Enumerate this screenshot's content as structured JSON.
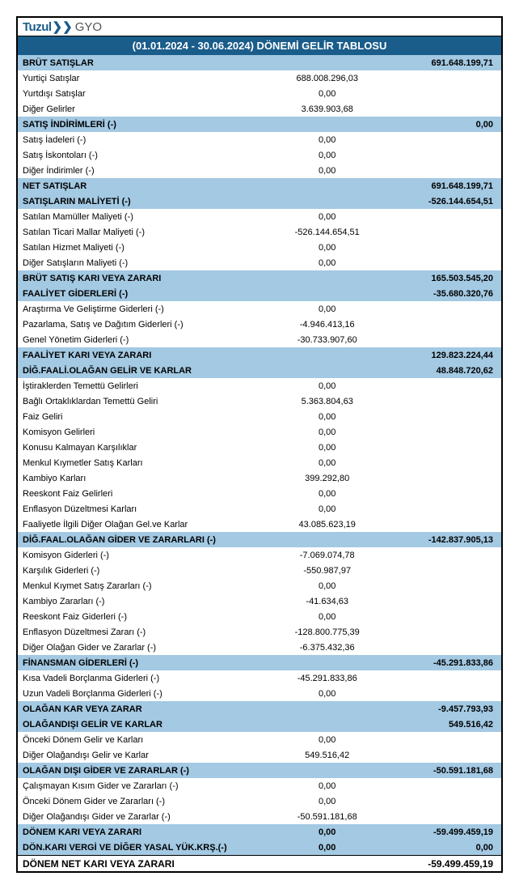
{
  "logo": {
    "brand": "Tuzul",
    "suffix": "GYO"
  },
  "title": "(01.01.2024 - 30.06.2024)   DÖNEMİ  GELİR TABLOSU",
  "rows": [
    {
      "label": "BRÜT SATIŞLAR",
      "mid": "",
      "right": "691.648.199,71",
      "cls": "header-row"
    },
    {
      "label": "Yurtiçi Satışlar",
      "mid": "688.008.296,03",
      "right": ""
    },
    {
      "label": "Yurtdışı Satışlar",
      "mid": "0,00",
      "right": ""
    },
    {
      "label": "Diğer Gelirler",
      "mid": "3.639.903,68",
      "right": ""
    },
    {
      "label": "SATIŞ İNDİRİMLERİ (-)",
      "mid": "",
      "right": "0,00",
      "cls": "header-row"
    },
    {
      "label": "Satış İadeleri (-)",
      "mid": "0,00",
      "right": ""
    },
    {
      "label": "Satış İskontoları (-)",
      "mid": "0,00",
      "right": ""
    },
    {
      "label": "Diğer İndirimler (-)",
      "mid": "0,00",
      "right": ""
    },
    {
      "label": "NET SATIŞLAR",
      "mid": "",
      "right": "691.648.199,71",
      "cls": "header-row"
    },
    {
      "label": "SATIŞLARIN MALİYETİ (-)",
      "mid": "",
      "right": "-526.144.654,51",
      "cls": "header-row"
    },
    {
      "label": "Satılan Mamüller Maliyeti (-)",
      "mid": "0,00",
      "right": ""
    },
    {
      "label": "Satılan Ticari Mallar Maliyeti (-)",
      "mid": "-526.144.654,51",
      "right": ""
    },
    {
      "label": "Satılan Hizmet Maliyeti (-)",
      "mid": "0,00",
      "right": ""
    },
    {
      "label": "Diğer Satışların Maliyeti (-)",
      "mid": "0,00",
      "right": ""
    },
    {
      "label": "BRÜT SATIŞ KARI VEYA ZARARI",
      "mid": "",
      "right": "165.503.545,20",
      "cls": "header-row"
    },
    {
      "label": "FAALİYET GİDERLERİ (-)",
      "mid": "",
      "right": "-35.680.320,76",
      "cls": "header-row"
    },
    {
      "label": "Araştırma Ve Geliştirme Giderleri (-)",
      "mid": "0,00",
      "right": ""
    },
    {
      "label": "Pazarlama, Satış ve Dağıtım Giderleri (-)",
      "mid": "-4.946.413,16",
      "right": ""
    },
    {
      "label": "Genel Yönetim Giderleri (-)",
      "mid": "-30.733.907,60",
      "right": ""
    },
    {
      "label": "FAALİYET KARI VEYA ZARARI",
      "mid": "",
      "right": "129.823.224,44",
      "cls": "header-row"
    },
    {
      "label": "DİĞ.FAALİ.OLAĞAN GELİR VE KARLAR",
      "mid": "",
      "right": "48.848.720,62",
      "cls": "header-row"
    },
    {
      "label": "İştiraklerden Temettü Gelirleri",
      "mid": "0,00",
      "right": ""
    },
    {
      "label": "Bağlı Ortaklıklardan Temettü Geliri",
      "mid": "5.363.804,63",
      "right": ""
    },
    {
      "label": "Faiz Geliri",
      "mid": "0,00",
      "right": ""
    },
    {
      "label": "Komisyon Gelirleri",
      "mid": "0,00",
      "right": ""
    },
    {
      "label": "Konusu Kalmayan Karşılıklar",
      "mid": "0,00",
      "right": ""
    },
    {
      "label": "Menkul Kıymetler Satış Karları",
      "mid": "0,00",
      "right": ""
    },
    {
      "label": "Kambiyo Karları",
      "mid": "399.292,80",
      "right": ""
    },
    {
      "label": "Reeskont Faiz Gelirleri",
      "mid": "0,00",
      "right": ""
    },
    {
      "label": "Enflasyon Düzeltmesi Karları",
      "mid": "0,00",
      "right": ""
    },
    {
      "label": "Faaliyetle İlgili Diğer Olağan Gel.ve Karlar",
      "mid": "43.085.623,19",
      "right": ""
    },
    {
      "label": "DİĞ.FAAL.OLAĞAN GİDER VE ZARARLARI (-)",
      "mid": "",
      "right": "-142.837.905,13",
      "cls": "header-row"
    },
    {
      "label": "Komisyon Giderleri (-)",
      "mid": "-7.069.074,78",
      "right": ""
    },
    {
      "label": "Karşılık Giderleri (-)",
      "mid": "-550.987,97",
      "right": ""
    },
    {
      "label": "Menkul Kıymet Satış Zararları (-)",
      "mid": "0,00",
      "right": ""
    },
    {
      "label": "Kambiyo Zararları (-)",
      "mid": "-41.634,63",
      "right": ""
    },
    {
      "label": "Reeskont Faiz Giderleri (-)",
      "mid": "0,00",
      "right": ""
    },
    {
      "label": "Enflasyon Düzeltmesi Zararı (-)",
      "mid": "-128.800.775,39",
      "right": ""
    },
    {
      "label": "Diğer Olağan Gider ve Zararlar (-)",
      "mid": "-6.375.432,36",
      "right": ""
    },
    {
      "label": "FİNANSMAN GİDERLERİ (-)",
      "mid": "",
      "right": "-45.291.833,86",
      "cls": "header-row"
    },
    {
      "label": "Kısa Vadeli Borçlanma Giderleri (-)",
      "mid": "-45.291.833,86",
      "right": ""
    },
    {
      "label": "Uzun Vadeli Borçlanma Giderleri (-)",
      "mid": "0,00",
      "right": ""
    },
    {
      "label": "OLAĞAN KAR VEYA ZARAR",
      "mid": "",
      "right": "-9.457.793,93",
      "cls": "header-row"
    },
    {
      "label": "OLAĞANDIŞI GELİR VE KARLAR",
      "mid": "",
      "right": "549.516,42",
      "cls": "header-row"
    },
    {
      "label": "Önceki Dönem Gelir ve Karları",
      "mid": "0,00",
      "right": ""
    },
    {
      "label": "Diğer Olağandışı Gelir ve Karlar",
      "mid": "549.516,42",
      "right": ""
    },
    {
      "label": "OLAĞAN DIŞI GİDER VE ZARARLAR (-)",
      "mid": "",
      "right": "-50.591.181,68",
      "cls": "header-row"
    },
    {
      "label": "Çalışmayan Kısım Gider ve Zararları (-)",
      "mid": "0,00",
      "right": ""
    },
    {
      "label": "Önceki Dönem Gider ve Zararları (-)",
      "mid": "0,00",
      "right": ""
    },
    {
      "label": "Diğer Olağandışı Gider ve Zararlar (-)",
      "mid": "-50.591.181,68",
      "right": ""
    },
    {
      "label": "DÖNEM KARI VEYA ZARARI",
      "mid": "0,00",
      "right": "-59.499.459,19",
      "cls": "header-row"
    },
    {
      "label": "DÖN.KARI  VERGİ VE DİĞER YASAL YÜK.KRŞ.(-)",
      "mid": "0,00",
      "right": "0,00",
      "cls": "header-row bottom-border"
    },
    {
      "label": "DÖNEM NET KARI VEYA ZARARI",
      "mid": "",
      "right": "-59.499.459,19",
      "cls": "final-row"
    }
  ]
}
